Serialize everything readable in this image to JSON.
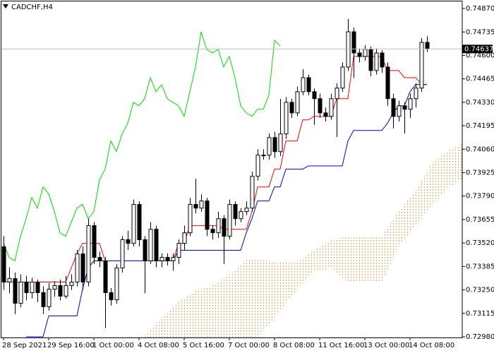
{
  "chart_data": {
    "type": "candlestick",
    "title": "CADCHF,H4",
    "categories": [
      "28 Sep 2021",
      null,
      null,
      null,
      null,
      null,
      null,
      null,
      "29 Sep 16:00",
      null,
      null,
      null,
      null,
      null,
      null,
      null,
      "1 Oct 00:00",
      null,
      null,
      null,
      null,
      null,
      null,
      null,
      "4 Oct 08:00",
      null,
      null,
      null,
      null,
      null,
      null,
      null,
      "5 Oct 16:00",
      null,
      null,
      null,
      null,
      null,
      null,
      null,
      "7 Oct 00:00",
      null,
      null,
      null,
      null,
      null,
      null,
      null,
      "8 Oct 08:00",
      null,
      null,
      null,
      null,
      null,
      null,
      null,
      "11 Oct 16:00",
      null,
      null,
      null,
      null,
      null,
      null,
      null,
      "13 Oct 00:00",
      null,
      null,
      null,
      null,
      null,
      null,
      null,
      "14 Oct 08:00",
      null,
      null,
      null,
      null,
      null,
      null,
      null,
      null,
      null,
      null
    ],
    "open": [
      0.73498,
      0.73295,
      0.73315,
      0.73173,
      0.73295,
      0.73234,
      0.73295,
      0.73234,
      0.73153,
      0.73254,
      0.73275,
      0.73214,
      0.73275,
      0.73295,
      0.73457,
      0.73295,
      0.7362,
      0.73437,
      0.73417,
      0.73234,
      0.73193,
      0.73376,
      0.73539,
      0.73518,
      0.73742,
      0.73539,
      0.73417,
      0.73599,
      0.73417,
      0.73437,
      0.73417,
      0.73437,
      0.73518,
      0.73579,
      0.73742,
      0.73721,
      0.73762,
      0.73599,
      0.73579,
      0.7366,
      0.73559,
      0.73742,
      0.7366,
      0.73701,
      0.73721,
      0.73904,
      0.74026,
      0.74026,
      0.74127,
      0.74046,
      0.74148,
      0.7433,
      0.74269,
      0.74391,
      0.74472,
      0.74391,
      0.74351,
      0.74269,
      0.74249,
      0.74351,
      0.74412,
      0.74533,
      0.74736,
      0.74614,
      0.74594,
      0.74635,
      0.74513,
      0.74614,
      0.74533,
      0.74351,
      0.74249,
      0.7431,
      0.7429,
      0.74351,
      0.74412,
      0.74675,
      null,
      null,
      null,
      null,
      null,
      null,
      null
    ],
    "high": [
      0.7356,
      0.7338,
      0.7335,
      0.7334,
      0.7333,
      0.7332,
      0.7331,
      0.7327,
      0.7329,
      0.733,
      0.7331,
      0.7333,
      0.7334,
      0.7348,
      0.735,
      0.7366,
      0.7364,
      0.7347,
      0.7344,
      0.7326,
      0.734,
      0.7356,
      0.7359,
      0.7377,
      0.7376,
      0.7356,
      0.7364,
      0.7362,
      0.7346,
      0.7346,
      0.7346,
      0.7354,
      0.7362,
      0.7378,
      0.7389,
      0.738,
      0.7378,
      0.7362,
      0.737,
      0.7368,
      0.7377,
      0.7376,
      0.7372,
      0.7376,
      0.7393,
      0.7406,
      0.7406,
      0.7415,
      0.7416,
      0.7435,
      0.7436,
      0.7435,
      0.7442,
      0.7452,
      0.7449,
      0.7441,
      0.7438,
      0.743,
      0.7438,
      0.7444,
      0.7456,
      0.7481,
      0.7476,
      0.7464,
      0.7466,
      0.7465,
      0.7464,
      0.7463,
      0.7456,
      0.7438,
      0.7434,
      0.7433,
      0.7438,
      0.7444,
      0.747,
      0.7471,
      null,
      null,
      null,
      null,
      null,
      null,
      null
    ],
    "low": [
      0.7325,
      0.7323,
      0.7311,
      0.7315,
      0.7319,
      0.732,
      0.7318,
      0.7311,
      0.7313,
      0.7321,
      0.7319,
      0.732,
      0.7325,
      0.7327,
      0.7325,
      0.7327,
      0.734,
      0.7338,
      0.7303,
      0.7316,
      0.7317,
      0.7335,
      0.7348,
      0.735,
      0.735,
      0.7323,
      0.734,
      0.7338,
      0.7338,
      0.7339,
      0.7336,
      0.734,
      0.7348,
      0.7356,
      0.7369,
      0.737,
      0.7356,
      0.7354,
      0.7355,
      0.734,
      0.7354,
      0.7362,
      0.7364,
      0.7368,
      0.737,
      0.7388,
      0.74,
      0.74,
      0.7401,
      0.7402,
      0.7412,
      0.7424,
      0.7425,
      0.7437,
      0.7437,
      0.742,
      0.7424,
      0.7422,
      0.7423,
      0.7413,
      0.7439,
      0.7451,
      0.7447,
      0.7456,
      0.7457,
      0.7448,
      0.7449,
      0.745,
      0.7431,
      0.7418,
      0.7422,
      0.7415,
      0.7424,
      0.743,
      0.7439,
      0.7462,
      null,
      null,
      null,
      null,
      null,
      null,
      null
    ],
    "close": [
      0.73295,
      0.73315,
      0.73173,
      0.73295,
      0.73234,
      0.73295,
      0.73234,
      0.73153,
      0.73254,
      0.73275,
      0.73214,
      0.73275,
      0.73295,
      0.73457,
      0.73295,
      0.7362,
      0.73437,
      0.73417,
      0.73234,
      0.73193,
      0.73376,
      0.73539,
      0.73518,
      0.73742,
      0.73539,
      0.73417,
      0.73599,
      0.73417,
      0.73437,
      0.73417,
      0.73437,
      0.73518,
      0.73579,
      0.73742,
      0.73721,
      0.73762,
      0.73599,
      0.73579,
      0.7366,
      0.73559,
      0.73742,
      0.7366,
      0.73701,
      0.73721,
      0.73904,
      0.74026,
      0.74026,
      0.74127,
      0.74046,
      0.74148,
      0.7433,
      0.74269,
      0.74391,
      0.74472,
      0.74391,
      0.74351,
      0.74269,
      0.74249,
      0.74351,
      0.74412,
      0.74533,
      0.74736,
      0.74614,
      0.74594,
      0.74635,
      0.74513,
      0.74614,
      0.74533,
      0.74351,
      0.74249,
      0.7431,
      0.7429,
      0.74351,
      0.74412,
      0.74675,
      0.74637,
      null,
      null,
      null,
      null,
      null,
      null,
      null
    ],
    "up_color": "#ffffff",
    "down_color": "#000000",
    "lines": [
      {
        "color": "#ff0000",
        "values": [
          0.73295,
          0.73295,
          0.73295,
          0.73295,
          0.73295,
          0.73295,
          0.73295,
          0.73295,
          0.73295,
          0.73295,
          0.73295,
          0.73295,
          0.73376,
          0.73457,
          0.73518,
          0.73518,
          0.73518,
          0.73518,
          0.73417,
          0.73417,
          0.73417,
          0.73417,
          0.73417,
          0.73417,
          0.73417,
          0.73417,
          0.73417,
          0.73417,
          0.73417,
          0.73417,
          0.73417,
          0.73518,
          0.73518,
          0.7362,
          0.7362,
          0.7362,
          0.7362,
          0.7362,
          0.7362,
          0.73599,
          0.73599,
          0.73599,
          0.73599,
          0.73599,
          0.73701,
          0.73843,
          0.73843,
          0.73843,
          0.73945,
          0.73945,
          0.74107,
          0.74107,
          0.74107,
          0.74229,
          0.74229,
          0.74249,
          0.74249,
          0.74249,
          0.74249,
          0.74351,
          0.74351,
          0.74351,
          0.74594,
          0.74594,
          0.74594,
          0.74594,
          0.74594,
          0.74594,
          0.74513,
          0.74513,
          0.74513,
          0.74472,
          0.74472,
          0.74472,
          0.74432,
          0.74432,
          null,
          null,
          null,
          null,
          null,
          null,
          null
        ]
      },
      {
        "color": "#0000cc",
        "values": [
          null,
          null,
          null,
          null,
          0.7298,
          0.7298,
          0.7298,
          0.7298,
          0.731,
          0.731,
          0.731,
          0.731,
          0.731,
          0.731,
          0.73254,
          0.73376,
          0.73417,
          0.73417,
          0.73417,
          0.73417,
          0.73417,
          0.73417,
          0.73417,
          0.73417,
          0.73417,
          0.73417,
          0.73417,
          0.73417,
          0.73417,
          0.73417,
          0.73417,
          0.73478,
          0.73478,
          0.73478,
          0.73478,
          0.73478,
          0.73478,
          0.73478,
          0.73478,
          0.73478,
          0.73478,
          0.73478,
          0.73478,
          0.73579,
          0.7366,
          0.73762,
          0.73762,
          0.73762,
          0.73843,
          0.73843,
          0.73945,
          0.73945,
          0.73945,
          0.73945,
          0.73964,
          0.73964,
          0.73964,
          0.73964,
          0.73964,
          0.73964,
          0.73964,
          0.74107,
          0.74168,
          0.74168,
          0.74168,
          0.74168,
          0.74168,
          0.74168,
          0.74209,
          0.74269,
          0.7431,
          0.7431,
          0.74391,
          0.74432,
          0.74432,
          0.74432,
          null,
          null,
          null,
          null,
          null,
          null,
          null
        ]
      },
      {
        "color": "#00dd00",
        "values": [
          0.73518,
          0.73437,
          0.73417,
          0.73559,
          0.7366,
          0.73782,
          0.73721,
          0.73843,
          0.73803,
          0.73701,
          0.73579,
          0.73559,
          0.7364,
          0.73721,
          0.73742,
          0.7366,
          0.73701,
          0.73884,
          0.73945,
          0.74107,
          0.74046,
          0.74148,
          0.74209,
          0.7433,
          0.7431,
          0.74351,
          0.74472,
          0.74391,
          0.74432,
          0.74351,
          0.7433,
          0.7431,
          0.74249,
          0.74391,
          0.74533,
          0.74736,
          0.74635,
          0.74614,
          0.74635,
          0.74533,
          0.74594,
          0.74472,
          0.7431,
          0.74269,
          0.74249,
          0.7429,
          0.7429,
          0.74371,
          0.74688,
          0.74655,
          null,
          null,
          null,
          null,
          null,
          null,
          null,
          null,
          null,
          null,
          null,
          null,
          null,
          null,
          null,
          null,
          null,
          null,
          null,
          null,
          null,
          null,
          null,
          null,
          null,
          null,
          null,
          null,
          null,
          null,
          null,
          null,
          null
        ]
      }
    ],
    "cloud": {
      "color": "#f4a460",
      "upper": [
        null,
        null,
        null,
        null,
        null,
        null,
        null,
        null,
        null,
        null,
        null,
        null,
        null,
        null,
        null,
        null,
        null,
        null,
        null,
        null,
        null,
        null,
        null,
        null,
        null,
        0.72991,
        0.73025,
        0.73058,
        0.73092,
        0.73122,
        0.73151,
        0.73181,
        0.73203,
        0.73224,
        0.73246,
        0.73256,
        0.73265,
        0.73275,
        0.73295,
        0.73316,
        0.73336,
        0.73366,
        0.73395,
        0.73425,
        0.73424,
        0.73422,
        0.73421,
        0.73418,
        0.73416,
        0.73413,
        0.73412,
        0.7341,
        0.73409,
        0.73432,
        0.73455,
        0.73478,
        0.73498,
        0.73519,
        0.73539,
        0.73546,
        0.73552,
        0.73559,
        0.73559,
        0.73559,
        0.73559,
        0.73559,
        0.73559,
        0.73559,
        0.73606,
        0.73654,
        0.73701,
        0.73742,
        0.73782,
        0.73823,
        0.73877,
        0.73931,
        0.73985,
        0.74009,
        0.74034,
        0.74058,
        0.74074,
        0.74091,
        0.74107
      ],
      "lower": [
        null,
        null,
        null,
        null,
        null,
        null,
        null,
        null,
        null,
        null,
        null,
        null,
        null,
        null,
        null,
        null,
        null,
        null,
        null,
        null,
        null,
        null,
        null,
        null,
        null,
        0.72978,
        0.72978,
        0.72978,
        0.72978,
        0.72978,
        0.72978,
        0.72978,
        0.72978,
        0.72978,
        0.72978,
        0.72978,
        0.72978,
        0.72978,
        0.72978,
        0.72978,
        0.72978,
        0.72978,
        0.72978,
        0.72978,
        0.72978,
        0.72978,
        0.73011,
        0.73052,
        0.73092,
        0.73133,
        0.73173,
        0.73214,
        0.73254,
        0.73288,
        0.73322,
        0.73356,
        0.73363,
        0.73369,
        0.73376,
        0.73349,
        0.73322,
        0.73295,
        0.73295,
        0.73295,
        0.73295,
        0.73295,
        0.73295,
        0.73295,
        0.73363,
        0.7343,
        0.73498,
        0.73539,
        0.73579,
        0.7362,
        0.73661,
        0.73701,
        0.73742,
        0.73776,
        0.73809,
        0.73843,
        0.73863,
        0.73884,
        0.73904
      ]
    },
    "last_price": 0.74637,
    "ylim": [
      0.72976,
      0.74919
    ],
    "yticks": [
      {
        "value": 0.7487,
        "label": "0.74870"
      },
      0.74735,
      {
        "value": 0.746,
        "label": "0.74600"
      },
      0.74465,
      {
        "value": 0.7433,
        "label": "0.74330"
      },
      0.74195,
      {
        "value": 0.7406,
        "label": "0.74060"
      },
      0.73925,
      {
        "value": 0.7379,
        "label": "0.73790"
      },
      0.73655,
      {
        "value": 0.7352,
        "label": "0.73520"
      },
      0.73385,
      {
        "value": 0.7325,
        "label": "0.73250"
      },
      0.73115,
      {
        "value": 0.7298,
        "label": "0.72980"
      }
    ]
  }
}
